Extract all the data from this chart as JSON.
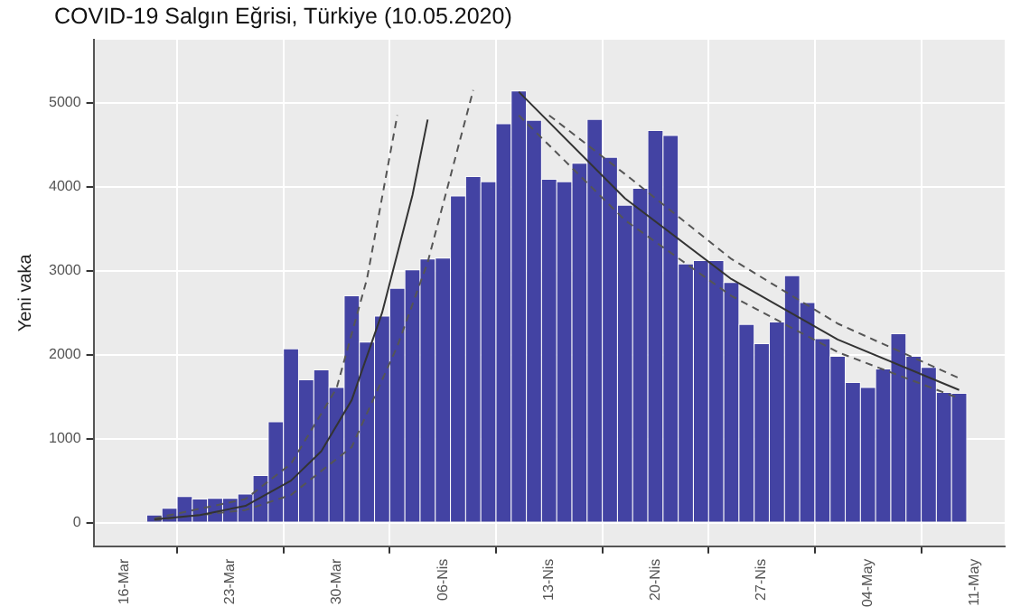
{
  "chart_data": {
    "type": "bar",
    "title": "COVID-19 Salgın Eğrisi, Türkiye (10.05.2020)",
    "ylabel": "Yeni vaka",
    "x": [
      "2020-03-18",
      "2020-03-19",
      "2020-03-20",
      "2020-03-21",
      "2020-03-22",
      "2020-03-23",
      "2020-03-24",
      "2020-03-25",
      "2020-03-26",
      "2020-03-27",
      "2020-03-28",
      "2020-03-29",
      "2020-03-30",
      "2020-03-31",
      "2020-04-01",
      "2020-04-02",
      "2020-04-03",
      "2020-04-04",
      "2020-04-05",
      "2020-04-06",
      "2020-04-07",
      "2020-04-08",
      "2020-04-09",
      "2020-04-10",
      "2020-04-11",
      "2020-04-12",
      "2020-04-13",
      "2020-04-14",
      "2020-04-15",
      "2020-04-16",
      "2020-04-17",
      "2020-04-18",
      "2020-04-19",
      "2020-04-20",
      "2020-04-21",
      "2020-04-22",
      "2020-04-23",
      "2020-04-24",
      "2020-04-25",
      "2020-04-26",
      "2020-04-27",
      "2020-04-28",
      "2020-04-29",
      "2020-04-30",
      "2020-05-01",
      "2020-05-02",
      "2020-05-03",
      "2020-05-04",
      "2020-05-05",
      "2020-05-06",
      "2020-05-07",
      "2020-05-08",
      "2020-05-09",
      "2020-05-10"
    ],
    "series": [
      {
        "color": "#4343a3",
        "values": [
          90,
          170,
          310,
          280,
          290,
          290,
          340,
          560,
          1200,
          2070,
          1700,
          1820,
          1610,
          2700,
          2150,
          2460,
          2790,
          3010,
          3140,
          3150,
          3890,
          4120,
          4060,
          4750,
          5140,
          4790,
          4090,
          4060,
          4280,
          4800,
          4350,
          3780,
          3980,
          4670,
          4610,
          3080,
          3120,
          3120,
          2860,
          2360,
          2130,
          2390,
          2940,
          2620,
          2190,
          1980,
          1670,
          1610,
          1830,
          2250,
          1980,
          1850,
          1550,
          1540
        ]
      },
      {
        "type": "line",
        "color": "#333333",
        "line_style": "solid",
        "x": [
          "2020-03-18",
          "2020-03-21",
          "2020-03-24",
          "2020-03-27",
          "2020-03-29",
          "2020-03-31",
          "2020-04-02",
          "2020-04-04",
          "2020-04-05"
        ],
        "values": [
          40,
          90,
          200,
          500,
          850,
          1460,
          2500,
          3900,
          4800
        ]
      },
      {
        "type": "line",
        "color": "#555555",
        "line_style": "dashed",
        "x": [
          "2020-03-18",
          "2020-03-24",
          "2020-03-27",
          "2020-03-30",
          "2020-04-01",
          "2020-04-03"
        ],
        "values": [
          50,
          280,
          700,
          1600,
          2900,
          4850
        ]
      },
      {
        "type": "line",
        "color": "#555555",
        "line_style": "dashed",
        "x": [
          "2020-03-18",
          "2020-03-24",
          "2020-03-27",
          "2020-03-31",
          "2020-04-03",
          "2020-04-05",
          "2020-04-08"
        ],
        "values": [
          30,
          150,
          330,
          900,
          2100,
          3100,
          5150
        ]
      },
      {
        "type": "line",
        "color": "#333333",
        "line_style": "solid",
        "x": [
          "2020-04-11",
          "2020-04-18",
          "2020-04-25",
          "2020-05-02",
          "2020-05-10"
        ],
        "values": [
          5130,
          3860,
          2900,
          2180,
          1580
        ]
      },
      {
        "type": "line",
        "color": "#555555",
        "line_style": "dashed",
        "x": [
          "2020-04-13",
          "2020-04-18",
          "2020-04-25",
          "2020-05-02",
          "2020-05-10"
        ],
        "values": [
          4850,
          4150,
          3140,
          2370,
          1720
        ]
      },
      {
        "type": "line",
        "color": "#555555",
        "line_style": "dashed",
        "x": [
          "2020-04-11",
          "2020-04-18",
          "2020-04-25",
          "2020-05-02",
          "2020-05-10"
        ],
        "values": [
          4850,
          3600,
          2700,
          2030,
          1480
        ]
      }
    ],
    "marker": "none",
    "xlim": [
      "2020-03-14",
      "2020-05-13"
    ],
    "xticks": [
      {
        "value": "2020-03-16",
        "label": "16-Mar"
      },
      {
        "value": "2020-03-23",
        "label": "23-Mar"
      },
      {
        "value": "2020-03-30",
        "label": "30-Mar"
      },
      {
        "value": "2020-04-06",
        "label": "06-Nis"
      },
      {
        "value": "2020-04-13",
        "label": "13-Nis"
      },
      {
        "value": "2020-04-20",
        "label": "20-Nis"
      },
      {
        "value": "2020-04-27",
        "label": "27-Nis"
      },
      {
        "value": "2020-05-04",
        "label": "04-May"
      },
      {
        "value": "2020-05-11",
        "label": "11-May"
      }
    ],
    "ylim": [
      -280,
      5750
    ],
    "yticks": [
      0,
      1000,
      2000,
      3000,
      4000,
      5000
    ],
    "grid": true
  }
}
